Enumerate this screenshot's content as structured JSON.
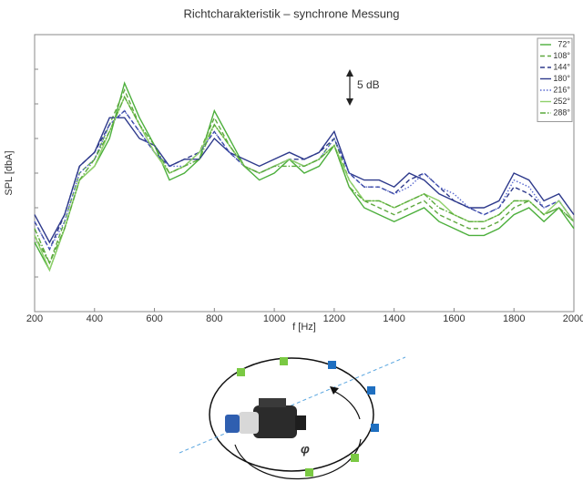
{
  "chart_data": {
    "type": "line",
    "title": "Richtcharakteristik – synchrone Messung",
    "x_label": "f [Hz]",
    "y_label": "SPL [dbA]",
    "annotation": "5 dB",
    "legend": "upper right",
    "grid": false,
    "xlim": [
      200,
      2000
    ],
    "xticks": [
      200,
      400,
      600,
      800,
      1000,
      1200,
      1400,
      1600,
      1800,
      2000
    ],
    "ylim": [
      0,
      40
    ],
    "yticks": [
      5,
      10,
      15,
      20,
      25,
      30,
      35
    ],
    "x": [
      200,
      250,
      300,
      350,
      400,
      450,
      500,
      550,
      600,
      650,
      700,
      750,
      800,
      850,
      900,
      950,
      1000,
      1050,
      1100,
      1150,
      1200,
      1250,
      1300,
      1350,
      1400,
      1450,
      1500,
      1550,
      1600,
      1650,
      1700,
      1750,
      1800,
      1850,
      1900,
      1950,
      2000
    ],
    "series": [
      {
        "name": "72°",
        "color": "#4caf3c",
        "style": "solid",
        "values": [
          10,
          6,
          12,
          19,
          21,
          25,
          33,
          28,
          24,
          19,
          20,
          22,
          29,
          25,
          21,
          19,
          20,
          22,
          20,
          21,
          24,
          18,
          15,
          14,
          13,
          14,
          15,
          13,
          12,
          11,
          11,
          12,
          14,
          15,
          13,
          15,
          12
        ]
      },
      {
        "name": "108°",
        "color": "#5fa83f",
        "style": "dashed",
        "values": [
          11,
          7,
          13,
          20,
          22,
          27,
          32,
          27,
          23,
          20,
          21,
          23,
          28,
          24,
          21,
          20,
          21,
          22,
          21,
          22,
          25,
          19,
          16,
          15,
          14,
          15,
          16,
          14,
          13,
          12,
          12,
          13,
          15,
          16,
          14,
          15,
          13
        ]
      },
      {
        "name": "144°",
        "color": "#2e3a8c",
        "style": "dashed",
        "values": [
          13,
          9,
          14,
          21,
          23,
          27,
          29,
          26,
          23,
          21,
          22,
          23,
          26,
          23,
          21,
          20,
          21,
          22,
          22,
          23,
          25,
          20,
          18,
          18,
          17,
          19,
          20,
          18,
          16,
          15,
          14,
          15,
          18,
          17,
          15,
          16,
          13
        ]
      },
      {
        "name": "180°",
        "color": "#2e3a8c",
        "style": "solid",
        "values": [
          14,
          10,
          14,
          21,
          23,
          28,
          28,
          25,
          24,
          21,
          22,
          22,
          25,
          23,
          22,
          21,
          22,
          23,
          22,
          23,
          26,
          20,
          19,
          19,
          18,
          20,
          19,
          17,
          16,
          15,
          15,
          16,
          20,
          19,
          16,
          17,
          14
        ]
      },
      {
        "name": "216°",
        "color": "#5a6ad0",
        "style": "dotted",
        "values": [
          13,
          9,
          13,
          20,
          22,
          27,
          29,
          26,
          23,
          21,
          21,
          23,
          26,
          23,
          21,
          20,
          21,
          22,
          21,
          22,
          25,
          20,
          18,
          18,
          17,
          18,
          20,
          18,
          17,
          15,
          14,
          15,
          19,
          18,
          15,
          16,
          13
        ]
      },
      {
        "name": "252°",
        "color": "#8fd06a",
        "style": "solid",
        "values": [
          11,
          6,
          12,
          19,
          21,
          26,
          31,
          27,
          23,
          20,
          21,
          23,
          27,
          24,
          21,
          20,
          21,
          22,
          21,
          22,
          24,
          19,
          16,
          16,
          15,
          16,
          17,
          16,
          14,
          13,
          13,
          14,
          16,
          16,
          14,
          16,
          13
        ]
      },
      {
        "name": "288°",
        "color": "#5aaa3c",
        "style": "dashdot",
        "values": [
          12,
          7,
          12,
          19,
          22,
          26,
          31,
          27,
          24,
          20,
          21,
          22,
          27,
          24,
          21,
          20,
          21,
          21,
          21,
          22,
          24,
          18,
          16,
          16,
          15,
          16,
          17,
          15,
          14,
          13,
          13,
          14,
          16,
          16,
          14,
          15,
          13
        ]
      }
    ]
  },
  "diagram": {
    "angle_symbol": "φ"
  }
}
